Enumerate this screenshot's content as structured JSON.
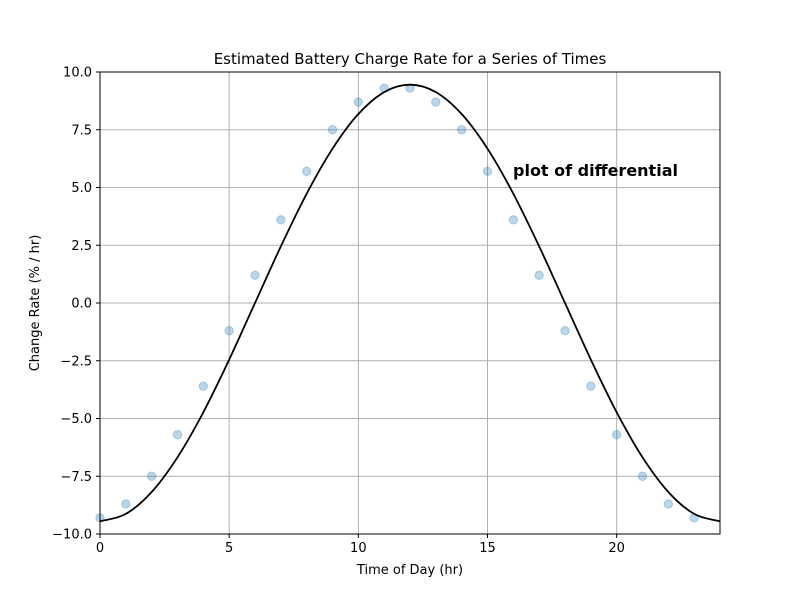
{
  "chart_data": {
    "type": "line",
    "title": "Estimated Battery Charge Rate for a Series of Times",
    "xlabel": "Time of Day (hr)",
    "ylabel": "Change Rate (% / hr)",
    "xlim": [
      0,
      24
    ],
    "ylim": [
      -10.0,
      10.0
    ],
    "x_ticks": [
      0,
      5,
      10,
      15,
      20
    ],
    "x_tick_labels": [
      "0",
      "5",
      "10",
      "15",
      "20"
    ],
    "y_ticks": [
      -10.0,
      -7.5,
      -5.0,
      -2.5,
      0.0,
      2.5,
      5.0,
      7.5,
      10.0
    ],
    "y_tick_labels": [
      "−10.0",
      "−7.5",
      "−5.0",
      "−2.5",
      "0.0",
      "2.5",
      "5.0",
      "7.5",
      "10.0"
    ],
    "grid": true,
    "annotation": "plot of differential",
    "series": [
      {
        "kind": "scatter",
        "color": "#1f77b4",
        "x": [
          0,
          1,
          2,
          3,
          4,
          5,
          6,
          7,
          8,
          9,
          10,
          11,
          12,
          13,
          14,
          15,
          16,
          17,
          18,
          19,
          20,
          21,
          22,
          23
        ],
        "y": [
          -9.3,
          -8.7,
          -7.5,
          -5.7,
          -3.6,
          -1.2,
          1.2,
          3.6,
          5.7,
          7.5,
          8.7,
          9.3,
          9.3,
          8.7,
          7.5,
          5.7,
          3.6,
          1.2,
          -1.2,
          -3.6,
          -5.7,
          -7.5,
          -8.7,
          -9.3
        ]
      },
      {
        "kind": "line",
        "color": "#000000",
        "x": [
          0,
          1,
          2,
          3,
          4,
          5,
          6,
          7,
          8,
          9,
          10,
          11,
          12,
          13,
          14,
          15,
          16,
          17,
          18,
          19,
          20,
          21,
          22,
          23,
          24
        ],
        "y": [
          -9.45,
          -9.13,
          -8.18,
          -6.68,
          -4.73,
          -2.45,
          0.0,
          2.45,
          4.73,
          6.68,
          8.18,
          9.13,
          9.45,
          9.13,
          8.18,
          6.68,
          4.73,
          2.45,
          0.0,
          -2.45,
          -4.73,
          -6.68,
          -8.18,
          -9.13,
          -9.45
        ]
      }
    ]
  }
}
